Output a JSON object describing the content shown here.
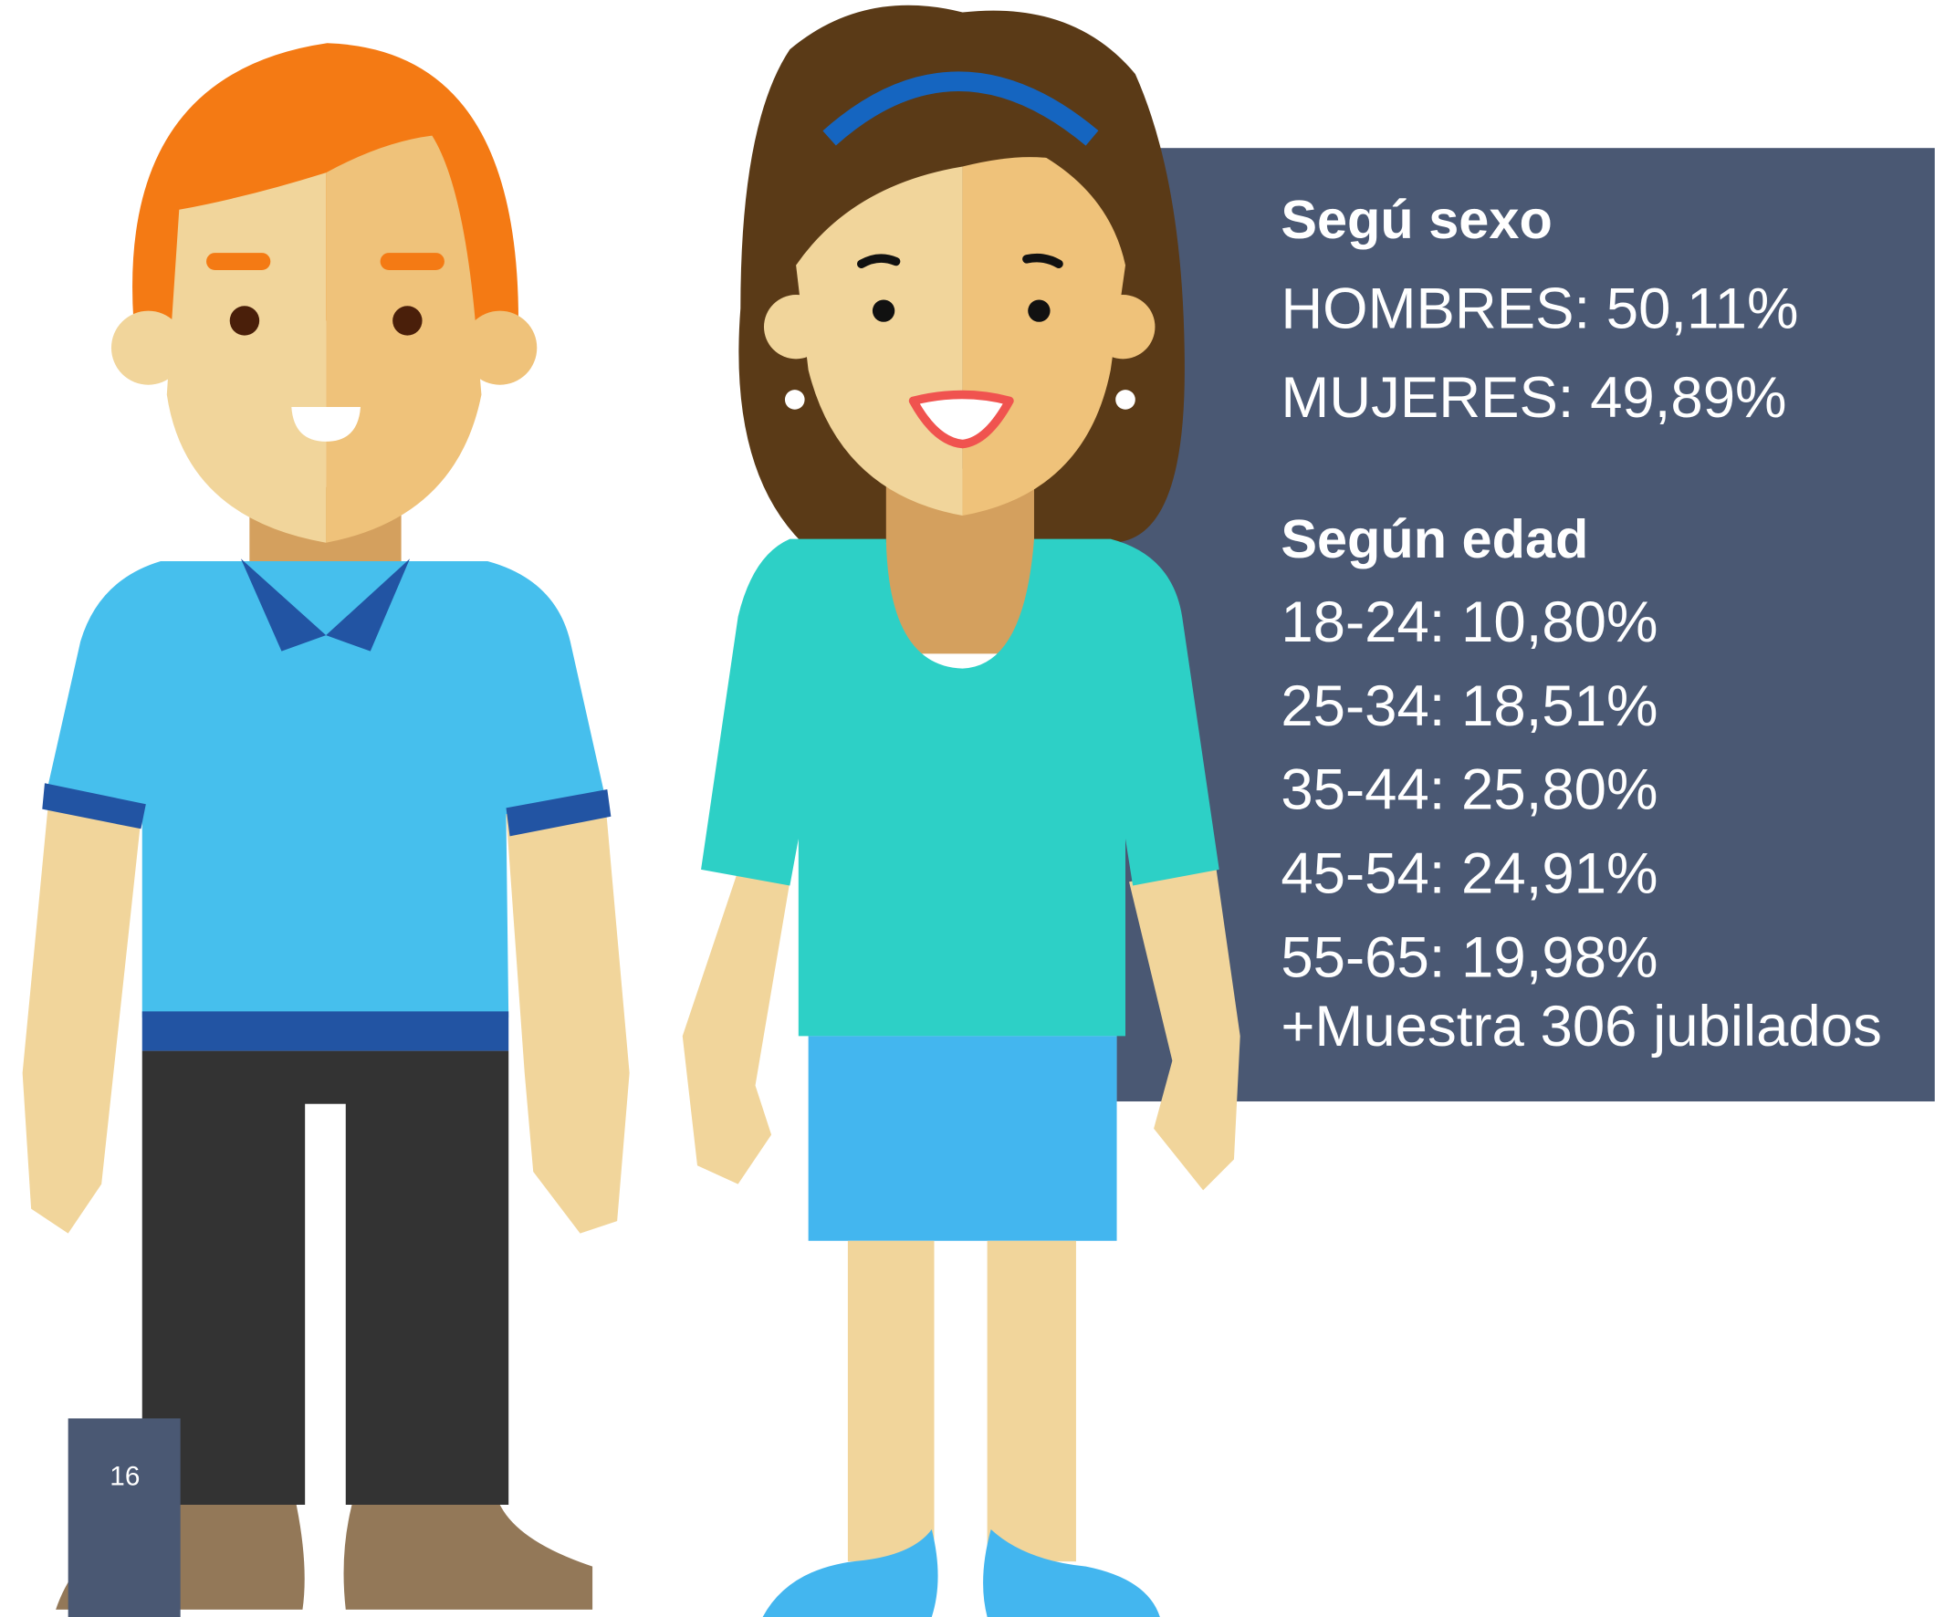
{
  "panel": {
    "sections": [
      {
        "heading": "Segú sexo",
        "items": [
          "HOMBRES: 50,11%",
          "MUJERES: 49,89%"
        ]
      },
      {
        "heading": "Según edad",
        "items": [
          "18-24: 10,80%",
          "25-34: 18,51%",
          "35-44: 25,80%",
          "45-54: 24,91%",
          "55-65: 19,98%",
          "+Muestra 306 jubilados"
        ]
      }
    ]
  },
  "page_number": "16"
}
